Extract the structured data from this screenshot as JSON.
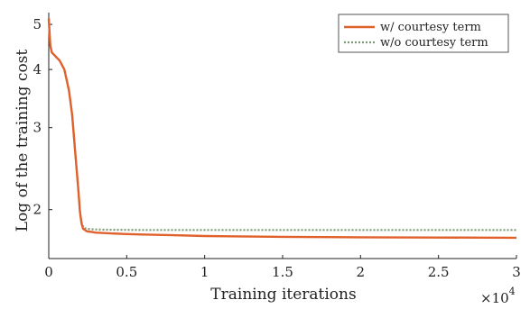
{
  "chart_data": {
    "type": "line",
    "title": "",
    "xlabel": "Training iterations",
    "ylabel": "Log of the training cost",
    "x_multiplier_label": "×10",
    "x_multiplier_exp": "4",
    "xlim": [
      0,
      3
    ],
    "ylim": [
      1.57,
      5.3
    ],
    "y_scale": "log",
    "x_ticks": [
      0,
      0.5,
      1,
      1.5,
      2,
      2.5,
      3
    ],
    "x_tick_labels": [
      "0",
      "0.5",
      "1",
      "1.5",
      "2",
      "2.5",
      "3"
    ],
    "y_ticks": [
      2,
      3,
      4,
      5
    ],
    "y_tick_labels": [
      "2",
      "3",
      "4",
      "5"
    ],
    "grid": false,
    "legend_position": "top-right",
    "series": [
      {
        "name": "w/ courtesy term",
        "color": "#e0612c",
        "style": "solid",
        "x": [
          0,
          0.005,
          0.01,
          0.02,
          0.04,
          0.07,
          0.1,
          0.13,
          0.15,
          0.17,
          0.19,
          0.2,
          0.21,
          0.22,
          0.23,
          0.24,
          0.25,
          0.28,
          0.3,
          0.4,
          0.5,
          0.6,
          0.8,
          1.0,
          1.5,
          2.0,
          2.5,
          3.0
        ],
        "y": [
          5.15,
          4.8,
          4.5,
          4.35,
          4.28,
          4.18,
          4.0,
          3.6,
          3.2,
          2.65,
          2.2,
          1.98,
          1.87,
          1.82,
          1.81,
          1.8,
          1.795,
          1.79,
          1.785,
          1.778,
          1.772,
          1.768,
          1.762,
          1.755,
          1.748,
          1.744,
          1.742,
          1.74
        ]
      },
      {
        "name": "w/o courtesy term",
        "color": "#7a9a76",
        "style": "dotted",
        "x": [
          0,
          0.005,
          0.01,
          0.02,
          0.04,
          0.07,
          0.1,
          0.13,
          0.15,
          0.17,
          0.19,
          0.2,
          0.21,
          0.22,
          0.23,
          0.24,
          0.25,
          0.28,
          0.3,
          0.4,
          0.5,
          0.6,
          0.8,
          1.0,
          1.5,
          2.0,
          2.5,
          3.0
        ],
        "y": [
          5.15,
          4.8,
          4.5,
          4.35,
          4.28,
          4.18,
          4.0,
          3.6,
          3.2,
          2.65,
          2.2,
          1.98,
          1.88,
          1.84,
          1.825,
          1.82,
          1.818,
          1.815,
          1.813,
          1.81,
          1.809,
          1.808,
          1.808,
          1.808,
          1.808,
          1.808,
          1.808,
          1.808
        ]
      }
    ]
  }
}
